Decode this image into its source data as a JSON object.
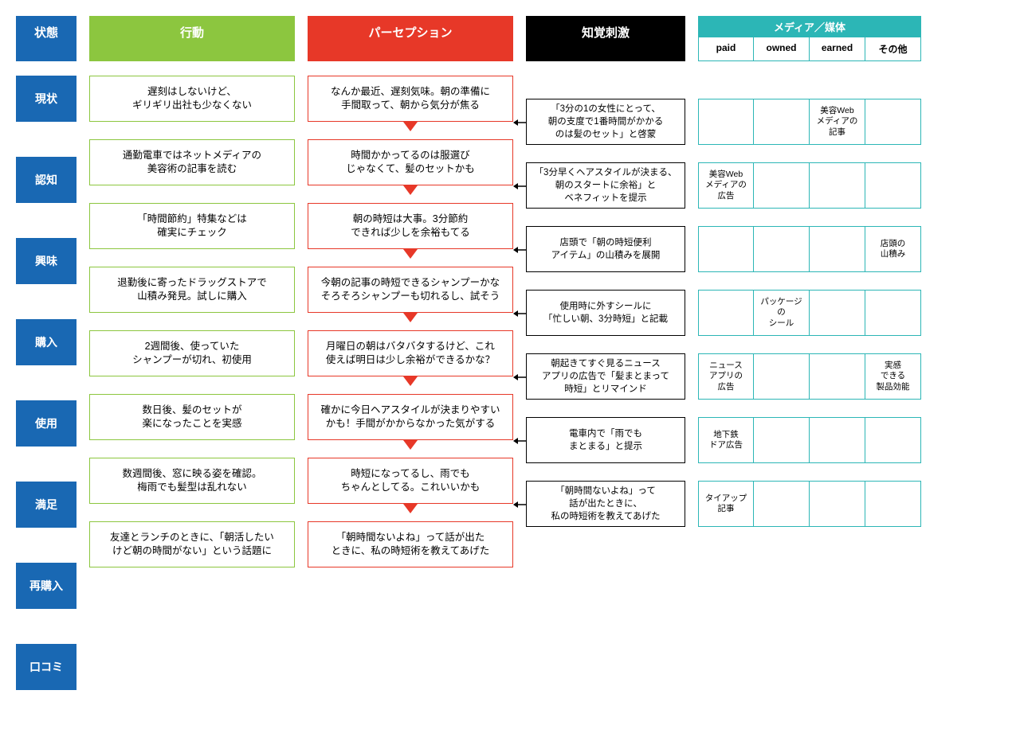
{
  "headers": {
    "state": "状態",
    "action": "行動",
    "perception": "パーセプション",
    "stimulus": "知覚刺激",
    "media": "メディア／媒体",
    "media_cols": [
      "paid",
      "owned",
      "earned",
      "その他"
    ]
  },
  "colors": {
    "blue": "#1968b3",
    "green": "#8cc63f",
    "red": "#e73828",
    "black": "#000000",
    "teal": "#2cb6b6"
  },
  "states": [
    "現状",
    "認知",
    "興味",
    "購入",
    "使用",
    "満足",
    "再購入",
    "口コミ"
  ],
  "actions": [
    "遅刻はしないけど、\nギリギリ出社も少なくない",
    "通勤電車ではネットメディアの\n美容術の記事を読む",
    "「時間節約」特集などは\n確実にチェック",
    "退勤後に寄ったドラッグストアで\n山積み発見。試しに購入",
    "2週間後、使っていた\nシャンプーが切れ、初使用",
    "数日後、髪のセットが\n楽になったことを実感",
    "数週間後、窓に映る姿を確認。\n梅雨でも髪型は乱れない",
    "友達とランチのときに、「朝活したい\nけど朝の時間がない」という話題に"
  ],
  "perceptions": [
    "なんか最近、遅刻気味。朝の準備に\n手間取って、朝から気分が焦る",
    "時間かかってるのは服選び\nじゃなくて、髪のセットかも",
    "朝の時短は大事。3分節約\nできれば少しを余裕もてる",
    "今朝の記事の時短できるシャンプーかな\nそろそろシャンプーも切れるし、試そう",
    "月曜日の朝はバタバタするけど、これ\n使えば明日は少し余裕ができるかな？",
    "確かに今日ヘアスタイルが決まりやすい\nかも！手間がかからなかった気がする",
    "時短になってるし、雨でも\nちゃんとしてる。これいいかも",
    "「朝時間ないよね」って話が出た\nときに、私の時短術を教えてあげた"
  ],
  "stimuli": [
    "「3分の1の女性にとって、\n朝の支度で1番時間がかかる\nのは髪のセット」と啓蒙",
    "「3分早くヘアスタイルが決まる、\n朝のスタートに余裕」と\nベネフィットを提示",
    "店頭で「朝の時短便利\nアイテム」の山積みを展開",
    "使用時に外すシールに\n「忙しい朝、3分時短」と記載",
    "朝起きてすぐ見るニュース\nアプリの広告で「髪まとまって\n時短」とリマインド",
    "電車内で「雨でも\nまとまる」と提示",
    "「朝時間ないよね」って\n話が出たときに、\n私の時短術を教えてあげた"
  ],
  "media": [
    [
      "",
      "",
      "美容Web\nメディアの\n記事",
      ""
    ],
    [
      "美容Web\nメディアの\n広告",
      "",
      "",
      ""
    ],
    [
      "",
      "",
      "",
      "店頭の\n山積み"
    ],
    [
      "",
      "パッケージ\nの\nシール",
      "",
      ""
    ],
    [
      "ニュース\nアプリの\n広告",
      "",
      "",
      "実感\nできる\n製品効能"
    ],
    [
      "地下鉄\nドア広告",
      "",
      "",
      ""
    ],
    [
      "タイアップ\n記事",
      "",
      "",
      ""
    ]
  ]
}
